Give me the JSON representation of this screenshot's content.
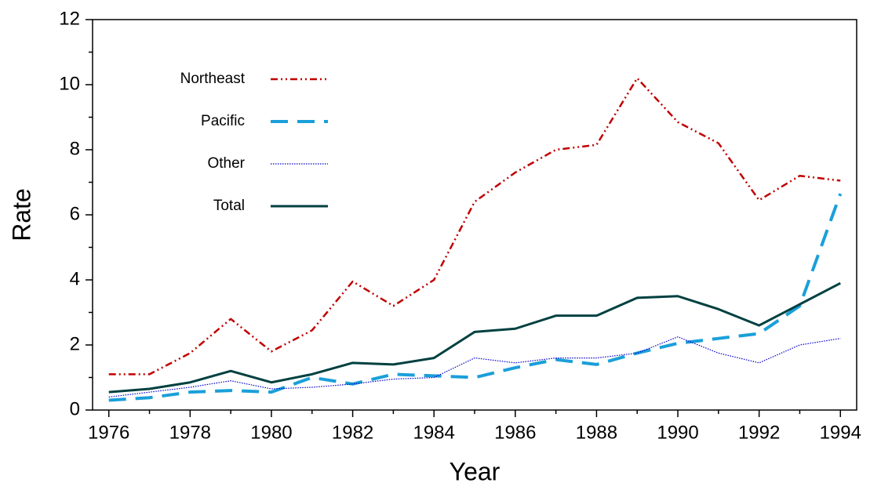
{
  "chart_data": {
    "type": "line",
    "x_label": "Year",
    "y_label": "Rate",
    "x": [
      1976,
      1977,
      1978,
      1979,
      1980,
      1981,
      1982,
      1983,
      1984,
      1985,
      1986,
      1987,
      1988,
      1989,
      1990,
      1991,
      1992,
      1993,
      1994
    ],
    "series": [
      {
        "name": "Northeast",
        "color": "#c00000",
        "style": "dash-dot-dot",
        "values": [
          1.1,
          1.1,
          1.75,
          2.8,
          1.8,
          2.45,
          3.95,
          3.2,
          4.0,
          6.4,
          7.3,
          8.0,
          8.15,
          10.2,
          8.85,
          8.2,
          6.45,
          7.2,
          7.05
        ]
      },
      {
        "name": "Pacific",
        "color": "#1a9fd9",
        "style": "long-dash",
        "values": [
          0.3,
          0.38,
          0.55,
          0.6,
          0.55,
          1.0,
          0.8,
          1.1,
          1.05,
          1.0,
          1.3,
          1.55,
          1.4,
          1.75,
          2.05,
          2.2,
          2.35,
          3.2,
          6.65
        ]
      },
      {
        "name": "Other",
        "color": "#0000cc",
        "style": "dotted",
        "values": [
          0.4,
          0.55,
          0.7,
          0.9,
          0.65,
          0.7,
          0.8,
          0.95,
          1.0,
          1.6,
          1.45,
          1.6,
          1.6,
          1.75,
          2.25,
          1.75,
          1.45,
          2.0,
          2.2
        ]
      },
      {
        "name": "Total",
        "color": "#004040",
        "style": "solid",
        "values": [
          0.55,
          0.65,
          0.85,
          1.2,
          0.85,
          1.1,
          1.45,
          1.4,
          1.6,
          2.4,
          2.5,
          2.9,
          2.9,
          3.45,
          3.5,
          3.1,
          2.6,
          3.25,
          3.9
        ]
      }
    ],
    "xlim": [
      1975.6,
      1994.4
    ],
    "ylim": [
      0,
      12
    ],
    "xticks": [
      1976,
      1978,
      1980,
      1982,
      1984,
      1986,
      1988,
      1990,
      1992,
      1994
    ],
    "xminor": [
      1977,
      1979,
      1981,
      1983,
      1985,
      1987,
      1989,
      1991,
      1993
    ],
    "yticks": [
      0,
      2,
      4,
      6,
      8,
      10,
      12
    ],
    "yminor": [
      1,
      3,
      5,
      7,
      9,
      11
    ],
    "legend": "upper-left",
    "grid": false
  }
}
